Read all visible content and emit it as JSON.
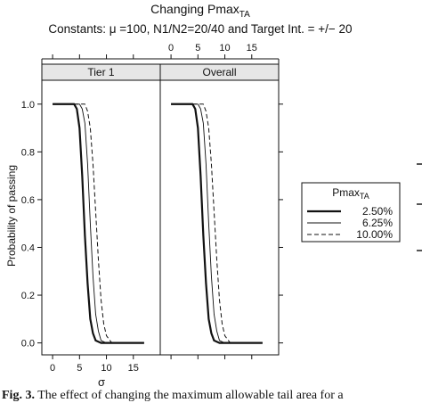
{
  "chart_data": {
    "type": "line",
    "title": "Changing Pmax",
    "title_subscript": "TA",
    "subtitle": "Constants: μ =100, N1/N2=20/40 and Target Int. = +/− 20",
    "xlabel": "σ",
    "ylabel": "Probability of passing",
    "xlim": [
      -2,
      20
    ],
    "ylim": [
      -0.05,
      1.1
    ],
    "x_ticks": [
      0,
      5,
      10,
      15
    ],
    "y_ticks": [
      0.0,
      0.2,
      0.4,
      0.6,
      0.8,
      1.0
    ],
    "y_tick_labels": [
      "0.0",
      "0.2",
      "0.4",
      "0.6",
      "0.8",
      "1.0"
    ],
    "legend": {
      "title": "Pmax",
      "title_subscript": "TA",
      "position": "right"
    },
    "panels": [
      {
        "name": "Tier 1",
        "series": [
          {
            "name": "2.50%",
            "style": "solid-thick",
            "x": [
              0,
              1,
              2,
              3,
              4,
              4.5,
              5,
              5.5,
              6,
              6.5,
              7,
              7.5,
              8,
              9,
              10,
              12,
              15,
              17
            ],
            "y": [
              1,
              1,
              1,
              1,
              1,
              0.98,
              0.9,
              0.7,
              0.45,
              0.25,
              0.1,
              0.04,
              0.01,
              0,
              0,
              0,
              0,
              0
            ]
          },
          {
            "name": "6.25%",
            "style": "solid-thin",
            "x": [
              0,
              1,
              2,
              3,
              4,
              5,
              5.5,
              6,
              6.5,
              7,
              7.5,
              8,
              8.5,
              9,
              10,
              12,
              15,
              17
            ],
            "y": [
              1,
              1,
              1,
              1,
              1,
              1,
              0.98,
              0.92,
              0.75,
              0.5,
              0.28,
              0.12,
              0.05,
              0.01,
              0,
              0,
              0,
              0
            ]
          },
          {
            "name": "10.00%",
            "style": "dashed",
            "x": [
              0,
              1,
              2,
              3,
              4,
              5,
              6,
              6.5,
              7,
              7.5,
              8,
              8.5,
              9,
              9.5,
              10,
              11,
              12,
              15,
              17
            ],
            "y": [
              1,
              1,
              1,
              1,
              1,
              1,
              1,
              0.97,
              0.9,
              0.75,
              0.55,
              0.35,
              0.18,
              0.08,
              0.03,
              0,
              0,
              0,
              0
            ]
          }
        ]
      },
      {
        "name": "Overall",
        "series": [
          {
            "name": "2.50%",
            "style": "solid-thick",
            "x": [
              0,
              1,
              2,
              3,
              4,
              4.5,
              5,
              5.5,
              6,
              6.5,
              7,
              7.5,
              8,
              9,
              10,
              12,
              15,
              17
            ],
            "y": [
              1,
              1,
              1,
              1,
              1,
              0.98,
              0.9,
              0.7,
              0.45,
              0.25,
              0.1,
              0.04,
              0.01,
              0,
              0,
              0,
              0,
              0
            ]
          },
          {
            "name": "6.25%",
            "style": "solid-thin",
            "x": [
              0,
              1,
              2,
              3,
              4,
              5,
              5.5,
              6,
              6.5,
              7,
              7.5,
              8,
              8.5,
              9,
              10,
              12,
              15,
              17
            ],
            "y": [
              1,
              1,
              1,
              1,
              1,
              1,
              0.98,
              0.92,
              0.75,
              0.5,
              0.28,
              0.12,
              0.05,
              0.01,
              0,
              0,
              0,
              0
            ]
          },
          {
            "name": "10.00%",
            "style": "dashed",
            "x": [
              0,
              1,
              2,
              3,
              4,
              5,
              6,
              6.5,
              7,
              7.5,
              8,
              8.5,
              9,
              9.5,
              10,
              11,
              12,
              15,
              17
            ],
            "y": [
              1,
              1,
              1,
              1,
              1,
              1,
              1,
              0.97,
              0.9,
              0.75,
              0.55,
              0.35,
              0.18,
              0.08,
              0.03,
              0,
              0,
              0,
              0
            ]
          }
        ]
      }
    ]
  },
  "caption": {
    "label": "Fig. 3.",
    "text": "The effect of changing the maximum allowable tail area for a"
  }
}
